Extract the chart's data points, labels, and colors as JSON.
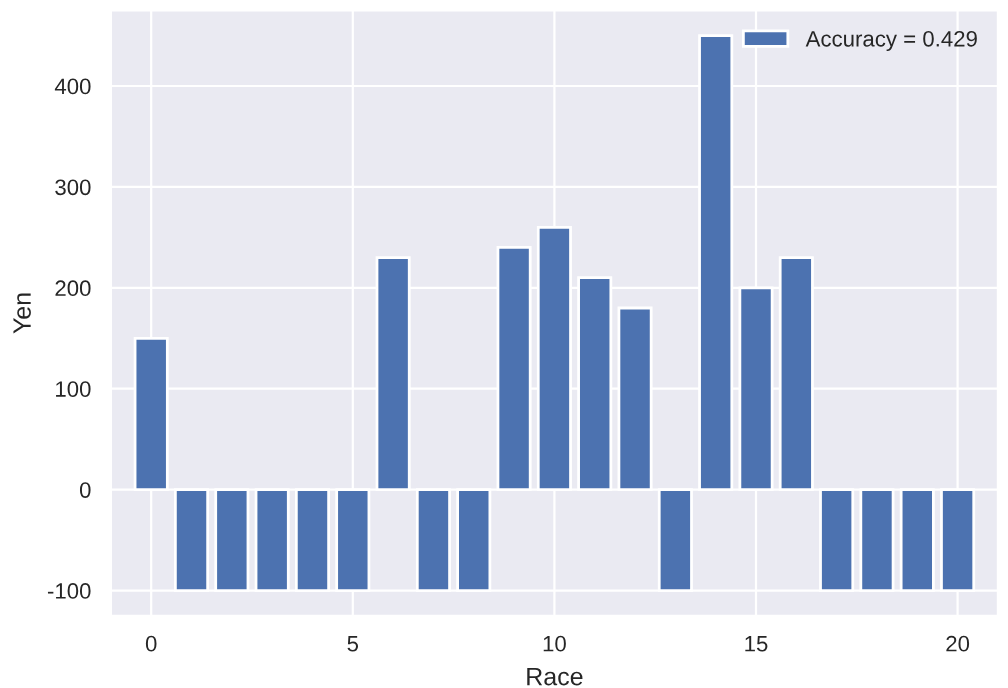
{
  "chart_data": {
    "type": "bar",
    "xlabel": "Race",
    "ylabel": "Yen",
    "x": [
      0,
      1,
      2,
      3,
      4,
      5,
      6,
      7,
      8,
      9,
      10,
      11,
      12,
      13,
      14,
      15,
      16,
      17,
      18,
      19,
      20
    ],
    "series": [
      {
        "name": "Accuracy = 0.429",
        "color": "#4c72b0",
        "values": [
          150,
          -100,
          -100,
          -100,
          -100,
          -100,
          230,
          -100,
          -100,
          240,
          260,
          210,
          180,
          -100,
          450,
          200,
          230,
          -100,
          -100,
          -100,
          -100
        ]
      }
    ],
    "xlim": [
      -1,
      21
    ],
    "xticks": [
      0,
      5,
      10,
      15,
      20
    ],
    "ylim": [
      -125,
      475
    ],
    "yticks": [
      -100,
      0,
      100,
      200,
      300,
      400
    ],
    "grid": true,
    "legend": "top right"
  }
}
